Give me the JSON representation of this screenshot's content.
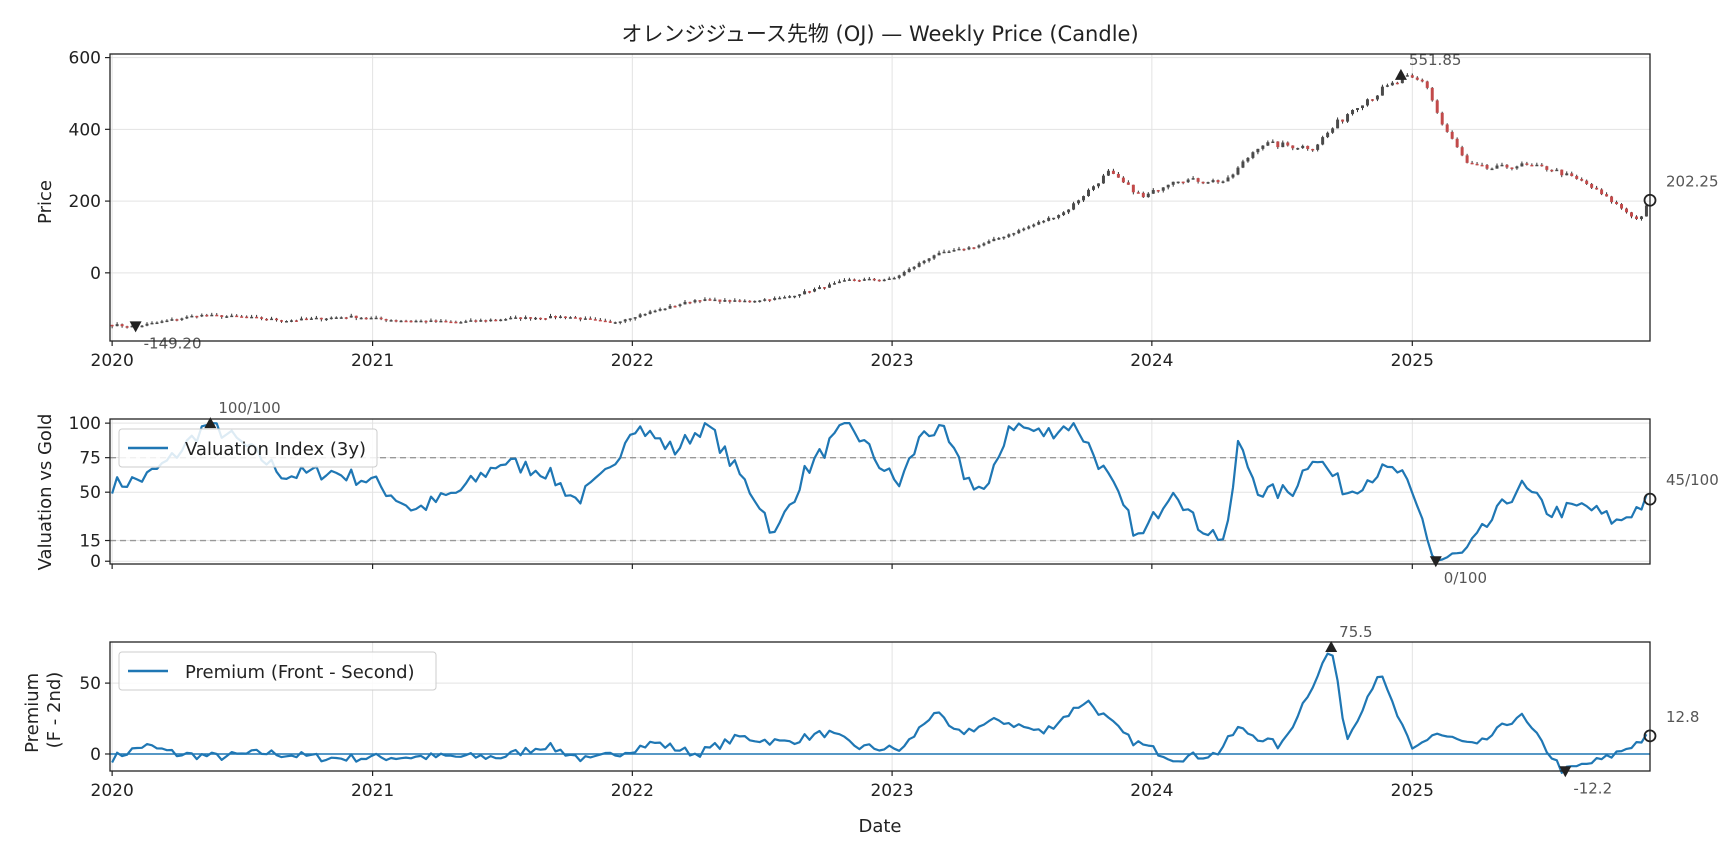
{
  "chart_data": [
    {
      "type": "candlestick",
      "title": "オレンジジュース先物 (OJ) — Weekly Price (Candle)",
      "ylabel": "Price",
      "xlabel": "",
      "ylim": [
        -190,
        610
      ],
      "yticks": [
        0,
        200,
        400,
        600
      ],
      "x_tick_labels": [
        "2020",
        "2021",
        "2022",
        "2023",
        "2024",
        "2025"
      ],
      "x_range": [
        "2019-12-29",
        "2025-12-01"
      ],
      "series_close_anchors": [
        [
          "2020-01-01",
          -145
        ],
        [
          "2020-02-01",
          -150
        ],
        [
          "2020-03-15",
          -135
        ],
        [
          "2020-05-01",
          -118
        ],
        [
          "2020-07-01",
          -123
        ],
        [
          "2020-09-01",
          -133
        ],
        [
          "2020-12-01",
          -122
        ],
        [
          "2021-02-01",
          -132
        ],
        [
          "2021-05-01",
          -138
        ],
        [
          "2021-07-15",
          -127
        ],
        [
          "2021-10-01",
          -122
        ],
        [
          "2021-12-01",
          -140
        ],
        [
          "2022-01-15",
          -115
        ],
        [
          "2022-04-01",
          -75
        ],
        [
          "2022-06-01",
          -80
        ],
        [
          "2022-08-01",
          -70
        ],
        [
          "2022-11-01",
          -20
        ],
        [
          "2023-01-01",
          -18
        ],
        [
          "2023-03-01",
          50
        ],
        [
          "2023-05-01",
          75
        ],
        [
          "2023-07-01",
          120
        ],
        [
          "2023-09-01",
          170
        ],
        [
          "2023-11-01",
          280
        ],
        [
          "2023-12-20",
          210
        ],
        [
          "2024-02-01",
          260
        ],
        [
          "2024-04-15",
          255
        ],
        [
          "2024-06-01",
          360
        ],
        [
          "2024-08-15",
          350
        ],
        [
          "2024-10-15",
          470
        ],
        [
          "2024-12-20",
          540
        ],
        [
          "2025-01-20",
          530
        ],
        [
          "2025-02-10",
          420
        ],
        [
          "2025-03-20",
          300
        ],
        [
          "2025-04-20",
          290
        ],
        [
          "2025-06-01",
          300
        ],
        [
          "2025-07-15",
          290
        ],
        [
          "2025-09-01",
          250
        ],
        [
          "2025-10-15",
          190
        ],
        [
          "2025-11-15",
          145
        ],
        [
          "2025-12-01",
          202.25
        ]
      ],
      "annotations": [
        {
          "date": "2024-12-16",
          "value": 551.85,
          "text": "551.85",
          "marker": "max"
        },
        {
          "date": "2020-02-03",
          "value": -149.2,
          "text": "-149.20",
          "marker": "min"
        },
        {
          "date": "2025-12-01",
          "value": 202.25,
          "text": "202.25",
          "marker": "last"
        }
      ],
      "colors": {
        "up": "#4a4a4a",
        "down": "#c24a4a",
        "wick": "#333333"
      }
    },
    {
      "type": "line",
      "ylabel": "Valuation vs Gold",
      "ylim": [
        -2,
        103
      ],
      "yticks": [
        0,
        15,
        50,
        75,
        100
      ],
      "reference_lines": [
        75,
        15
      ],
      "legend": {
        "position": "top-left"
      },
      "series": [
        {
          "name": "Valuation Index (3y)",
          "color": "#1f77b4",
          "anchors": [
            [
              "2020-01-01",
              55
            ],
            [
              "2020-02-15",
              60
            ],
            [
              "2020-03-20",
              72
            ],
            [
              "2020-05-15",
              100
            ],
            [
              "2020-07-01",
              85
            ],
            [
              "2020-09-01",
              62
            ],
            [
              "2020-11-01",
              65
            ],
            [
              "2021-01-01",
              58
            ],
            [
              "2021-03-01",
              37
            ],
            [
              "2021-05-01",
              50
            ],
            [
              "2021-07-01",
              72
            ],
            [
              "2021-09-01",
              65
            ],
            [
              "2021-10-15",
              44
            ],
            [
              "2021-12-01",
              65
            ],
            [
              "2022-01-01",
              100
            ],
            [
              "2022-03-01",
              80
            ],
            [
              "2022-04-15",
              100
            ],
            [
              "2022-05-15",
              75
            ],
            [
              "2022-07-01",
              40
            ],
            [
              "2022-07-20",
              18
            ],
            [
              "2022-09-01",
              65
            ],
            [
              "2022-11-01",
              100
            ],
            [
              "2022-12-15",
              70
            ],
            [
              "2023-01-10",
              55
            ],
            [
              "2023-02-15",
              95
            ],
            [
              "2023-03-15",
              92
            ],
            [
              "2023-04-15",
              60
            ],
            [
              "2023-05-15",
              50
            ],
            [
              "2023-06-15",
              100
            ],
            [
              "2023-08-01",
              92
            ],
            [
              "2023-09-15",
              100
            ],
            [
              "2023-11-01",
              60
            ],
            [
              "2023-12-15",
              15
            ],
            [
              "2024-02-01",
              55
            ],
            [
              "2024-03-01",
              28
            ],
            [
              "2024-04-15",
              15
            ],
            [
              "2024-05-01",
              85
            ],
            [
              "2024-06-01",
              50
            ],
            [
              "2024-07-15",
              50
            ],
            [
              "2024-08-15",
              78
            ],
            [
              "2024-10-01",
              50
            ],
            [
              "2024-11-15",
              65
            ],
            [
              "2024-12-15",
              65
            ],
            [
              "2025-01-15",
              30
            ],
            [
              "2025-02-01",
              0
            ],
            [
              "2025-03-15",
              5
            ],
            [
              "2025-04-15",
              25
            ],
            [
              "2025-06-01",
              55
            ],
            [
              "2025-07-15",
              35
            ],
            [
              "2025-09-01",
              40
            ],
            [
              "2025-10-15",
              28
            ],
            [
              "2025-12-01",
              45
            ]
          ]
        }
      ],
      "annotations": [
        {
          "date": "2020-05-18",
          "value": 100,
          "text": "100/100",
          "marker": "max"
        },
        {
          "date": "2025-02-03",
          "value": 0,
          "text": "0/100",
          "marker": "min"
        },
        {
          "date": "2025-12-01",
          "value": 45,
          "text": "45/100",
          "marker": "last"
        }
      ]
    },
    {
      "type": "line",
      "ylabel": "Premium\n(F - 2nd)",
      "xlabel": "Date",
      "ylim": [
        -12,
        79
      ],
      "yticks": [
        0,
        50
      ],
      "x_tick_labels": [
        "2020",
        "2021",
        "2022",
        "2023",
        "2024",
        "2025"
      ],
      "reference_lines": [
        0
      ],
      "legend": {
        "position": "top-left"
      },
      "series": [
        {
          "name": "Premium (Front - Second)",
          "color": "#1f77b4",
          "anchors": [
            [
              "2020-01-01",
              -3
            ],
            [
              "2020-02-15",
              6
            ],
            [
              "2020-04-01",
              0
            ],
            [
              "2020-06-01",
              -2
            ],
            [
              "2020-08-01",
              1
            ],
            [
              "2020-11-01",
              -3
            ],
            [
              "2021-03-01",
              -2
            ],
            [
              "2021-07-01",
              -2
            ],
            [
              "2021-09-01",
              6
            ],
            [
              "2021-11-01",
              -5
            ],
            [
              "2022-02-01",
              8
            ],
            [
              "2022-04-01",
              0
            ],
            [
              "2022-06-01",
              12
            ],
            [
              "2022-08-01",
              8
            ],
            [
              "2022-10-01",
              15
            ],
            [
              "2022-11-15",
              5
            ],
            [
              "2023-01-15",
              3
            ],
            [
              "2023-03-01",
              30
            ],
            [
              "2023-04-01",
              14
            ],
            [
              "2023-06-01",
              24
            ],
            [
              "2023-08-01",
              15
            ],
            [
              "2023-10-01",
              38
            ],
            [
              "2023-12-01",
              10
            ],
            [
              "2024-02-01",
              -3
            ],
            [
              "2024-04-01",
              0
            ],
            [
              "2024-05-01",
              18
            ],
            [
              "2024-07-01",
              5
            ],
            [
              "2024-09-09",
              75.5
            ],
            [
              "2024-10-01",
              10
            ],
            [
              "2024-11-15",
              58
            ],
            [
              "2025-01-01",
              2
            ],
            [
              "2025-02-01",
              15
            ],
            [
              "2025-04-01",
              5
            ],
            [
              "2025-06-01",
              28
            ],
            [
              "2025-08-01",
              -12.2
            ],
            [
              "2025-10-01",
              -3
            ],
            [
              "2025-12-01",
              12.8
            ]
          ]
        }
      ],
      "annotations": [
        {
          "date": "2024-09-09",
          "value": 75.5,
          "text": "75.5",
          "marker": "max"
        },
        {
          "date": "2025-08-04",
          "value": -12.2,
          "text": "-12.2",
          "marker": "min"
        },
        {
          "date": "2025-12-01",
          "value": 12.8,
          "text": "12.8",
          "marker": "last"
        }
      ]
    }
  ]
}
